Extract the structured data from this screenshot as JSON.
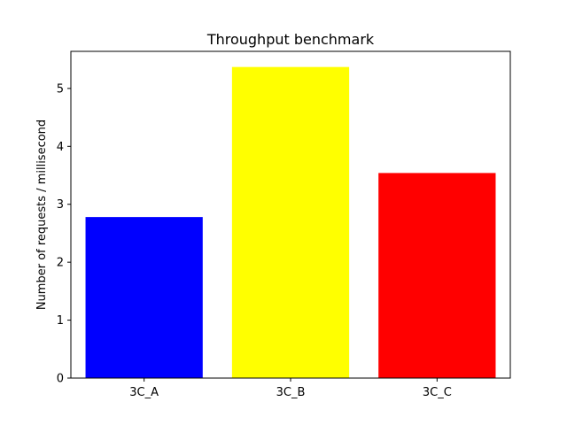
{
  "chart_data": {
    "type": "bar",
    "title": "Throughput benchmark",
    "xlabel": "",
    "ylabel": "Number of requests / millisecond",
    "categories": [
      "3C_A",
      "3C_B",
      "3C_C"
    ],
    "values": [
      2.78,
      5.37,
      3.54
    ],
    "colors": [
      "#0000ff",
      "#ffff00",
      "#ff0000"
    ],
    "ylim": [
      0,
      5.64
    ],
    "yticks": [
      0,
      1,
      2,
      3,
      4,
      5
    ],
    "grid": false,
    "legend": false
  }
}
